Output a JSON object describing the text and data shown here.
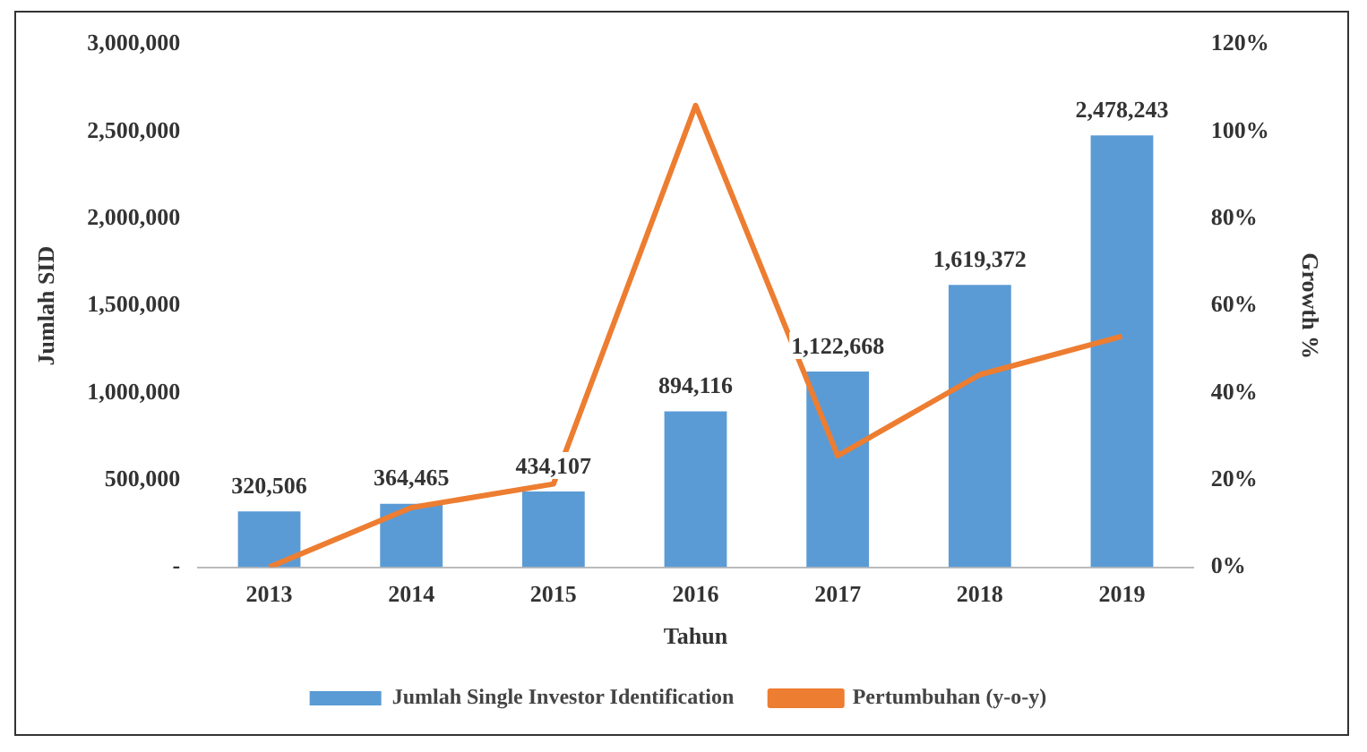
{
  "chart_data": {
    "type": "bar",
    "xlabel": "Tahun",
    "ylabel": "Jumlah SID",
    "y2label": "Growth %",
    "categories": [
      "2013",
      "2014",
      "2015",
      "2016",
      "2017",
      "2018",
      "2019"
    ],
    "series": [
      {
        "name": "Jumlah Single Investor Identification",
        "color": "#5b9bd5",
        "values": [
          320506,
          364465,
          434107,
          894116,
          1122668,
          1619372,
          2478243
        ],
        "value_labels": [
          "320,506",
          "364,465",
          "434,107",
          "894,116",
          "1,122,668",
          "1,619,372",
          "2,478,243"
        ]
      },
      {
        "name": "Pertumbuhan (y-o-y)",
        "type": "line",
        "axis": "y2",
        "color": "#ed7d31",
        "values": [
          0,
          13.7,
          19.1,
          106,
          25.6,
          44.2,
          53
        ]
      }
    ],
    "ylim": [
      0,
      3000000
    ],
    "yticks": [
      {
        "value": 0,
        "label": "-"
      },
      {
        "value": 500000,
        "label": "500,000"
      },
      {
        "value": 1000000,
        "label": "1,000,000"
      },
      {
        "value": 1500000,
        "label": "1,500,000"
      },
      {
        "value": 2000000,
        "label": "2,000,000"
      },
      {
        "value": 2500000,
        "label": "2,500,000"
      },
      {
        "value": 3000000,
        "label": "3,000,000"
      }
    ],
    "y2lim": [
      0,
      120
    ],
    "y2ticks": [
      {
        "value": 0,
        "label": "0%"
      },
      {
        "value": 20,
        "label": "20%"
      },
      {
        "value": 40,
        "label": "40%"
      },
      {
        "value": 60,
        "label": "60%"
      },
      {
        "value": 80,
        "label": "80%"
      },
      {
        "value": 100,
        "label": "100%"
      },
      {
        "value": 120,
        "label": "120%"
      }
    ],
    "legend": "bottom",
    "marker": "none"
  }
}
